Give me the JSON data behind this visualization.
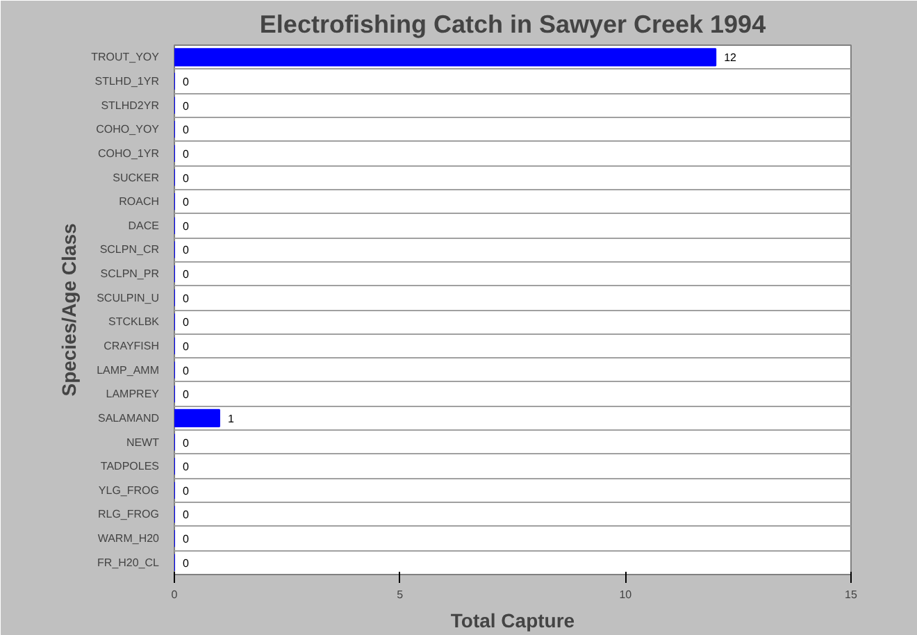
{
  "chart_data": {
    "type": "bar",
    "orientation": "horizontal",
    "title": "Electrofishing Catch in Sawyer Creek 1994",
    "xlabel": "Total Capture",
    "ylabel": "Species/Age Class",
    "categories": [
      "TROUT_YOY",
      "STLHD_1YR",
      "STLHD2YR",
      "COHO_YOY",
      "COHO_1YR",
      "SUCKER",
      "ROACH",
      "DACE",
      "SCLPN_CR",
      "SCLPN_PR",
      "SCULPIN_U",
      "STCKLBK",
      "CRAYFISH",
      "LAMP_AMM",
      "LAMPREY",
      "SALAMAND",
      "NEWT",
      "TADPOLES",
      "YLG_FROG",
      "RLG_FROG",
      "WARM_H20",
      "FR_H20_CL"
    ],
    "values": [
      12,
      0,
      0,
      0,
      0,
      0,
      0,
      0,
      0,
      0,
      0,
      0,
      0,
      0,
      0,
      1,
      0,
      0,
      0,
      0,
      0,
      0
    ],
    "color": "#0000ff",
    "xlim": [
      0,
      15
    ],
    "xticks": [
      0,
      5,
      10,
      15
    ],
    "grid": "y",
    "data_labels": true
  }
}
